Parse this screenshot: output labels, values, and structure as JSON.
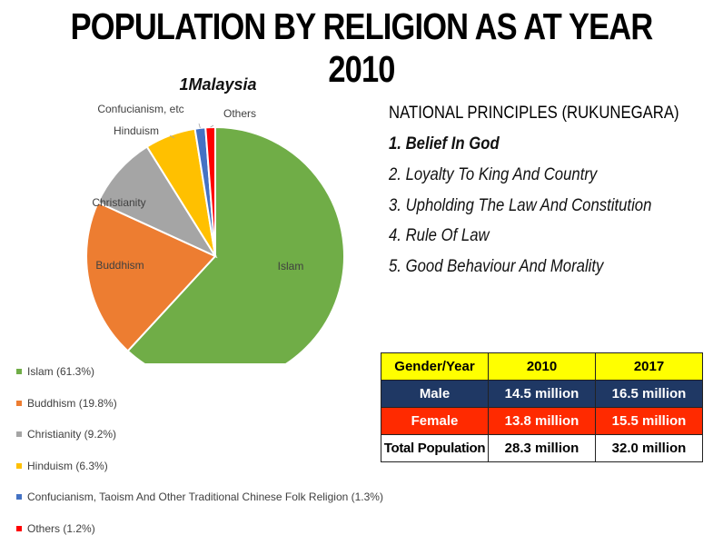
{
  "title": "POPULATION BY RELIGION AS AT YEAR 2010",
  "chart_data": {
    "type": "pie",
    "title": "1Malaysia",
    "categories": [
      "Islam",
      "Buddhism",
      "Christianity",
      "Hinduism",
      "Confucianism, etc",
      "Others"
    ],
    "values": [
      61.3,
      19.8,
      9.2,
      6.3,
      1.3,
      1.2
    ],
    "colors": [
      "#70ad47",
      "#ed7d31",
      "#a5a5a5",
      "#ffc000",
      "#4472c4",
      "#ff0000"
    ],
    "legend": [
      "Islam (61.3%)",
      "Buddhism (19.8%)",
      "Christianity (9.2%)",
      "Hinduism (6.3%)",
      "Confucianism, Taoism And Other Traditional Chinese Folk Religion (1.3%)",
      "Others (1.2%)"
    ],
    "legend_position": "bottom-left"
  },
  "principles": {
    "heading": "NATIONAL PRINCIPLES (RUKUNEGARA)",
    "items": [
      "1. Belief In God",
      "2. Loyalty To King And Country",
      "3. Upholding The Law And Constitution",
      "4. Rule Of Law",
      "5. Good Behaviour And Morality"
    ]
  },
  "table": {
    "headers": [
      "Gender/Year",
      "2010",
      "2017"
    ],
    "rows": [
      [
        "Male",
        "14.5 million",
        "16.5 million"
      ],
      [
        "Female",
        "13.8 million",
        "15.5 million"
      ],
      [
        "Total Population",
        "28.3 million",
        "32.0 million"
      ]
    ]
  }
}
